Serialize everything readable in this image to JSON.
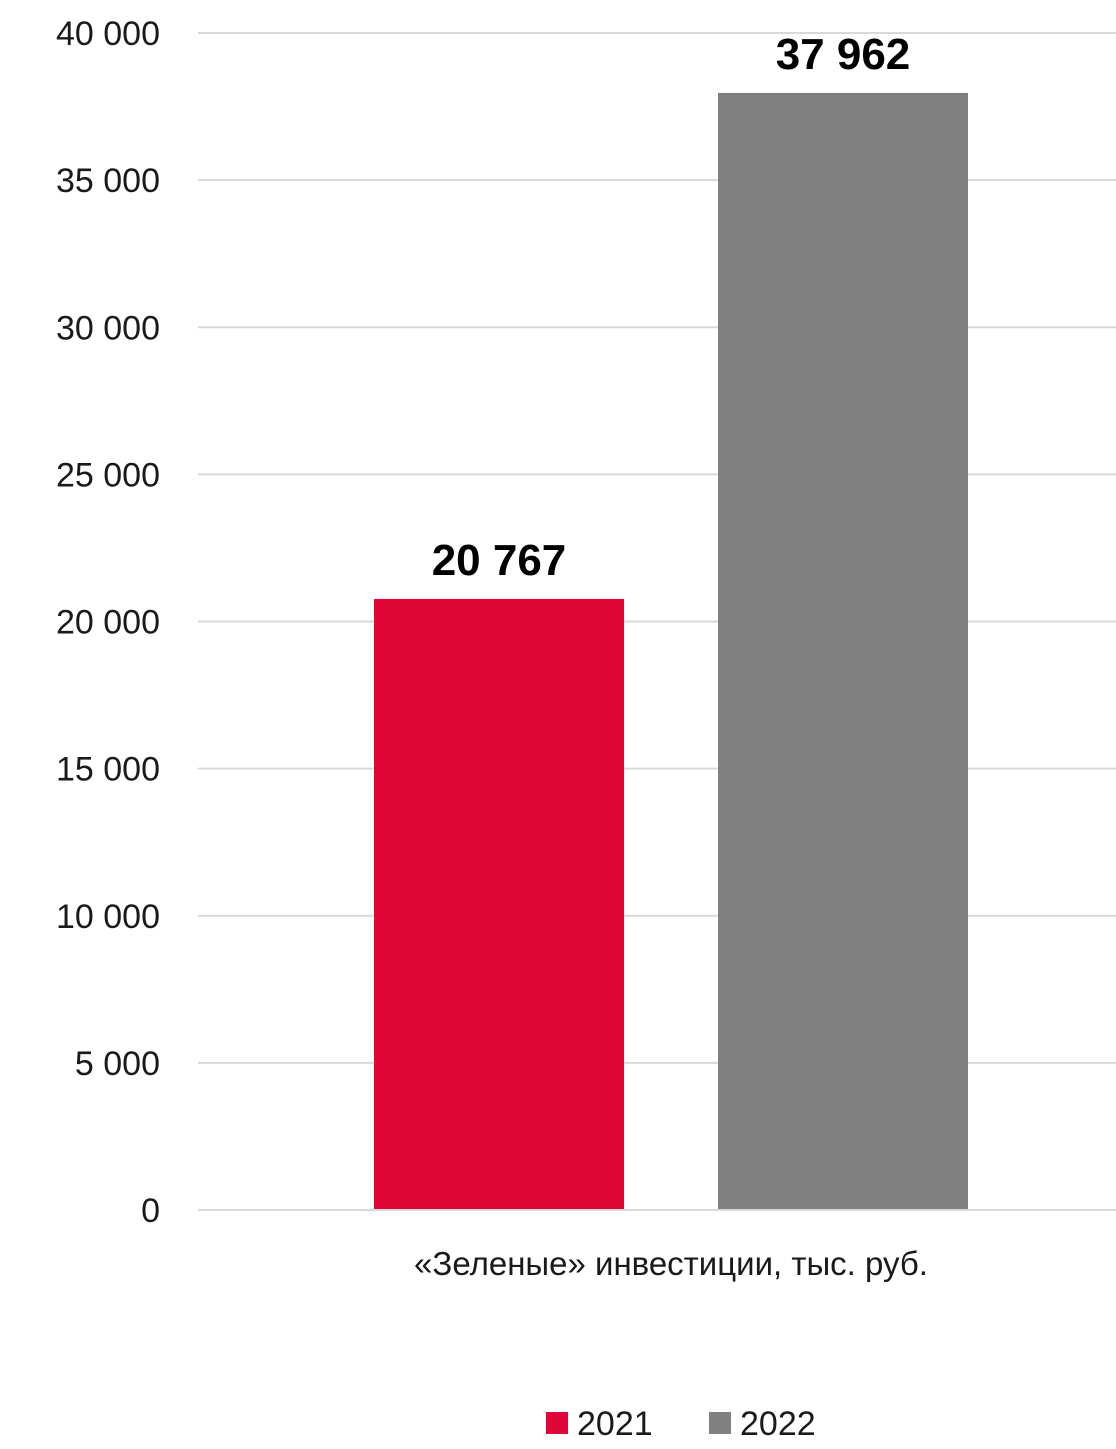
{
  "chart_data": {
    "type": "bar",
    "categories": [
      "«Зеленые» инвестиции, тыс. руб."
    ],
    "series": [
      {
        "name": "2021",
        "values": [
          20767
        ],
        "value_labels": [
          "20 767"
        ],
        "color": "#e00637"
      },
      {
        "name": "2022",
        "values": [
          37962
        ],
        "value_labels": [
          "37 962"
        ],
        "color": "#808080"
      }
    ],
    "ylim": [
      0,
      40000
    ],
    "yticks": [
      0,
      5000,
      10000,
      15000,
      20000,
      25000,
      30000,
      35000,
      40000
    ],
    "ytick_labels": [
      "0",
      "5 000",
      "10 000",
      "15 000",
      "20 000",
      "25 000",
      "30 000",
      "35 000",
      "40 000"
    ],
    "grid": true,
    "legend_position": "bottom-center",
    "title": "",
    "xlabel": "",
    "ylabel": ""
  }
}
